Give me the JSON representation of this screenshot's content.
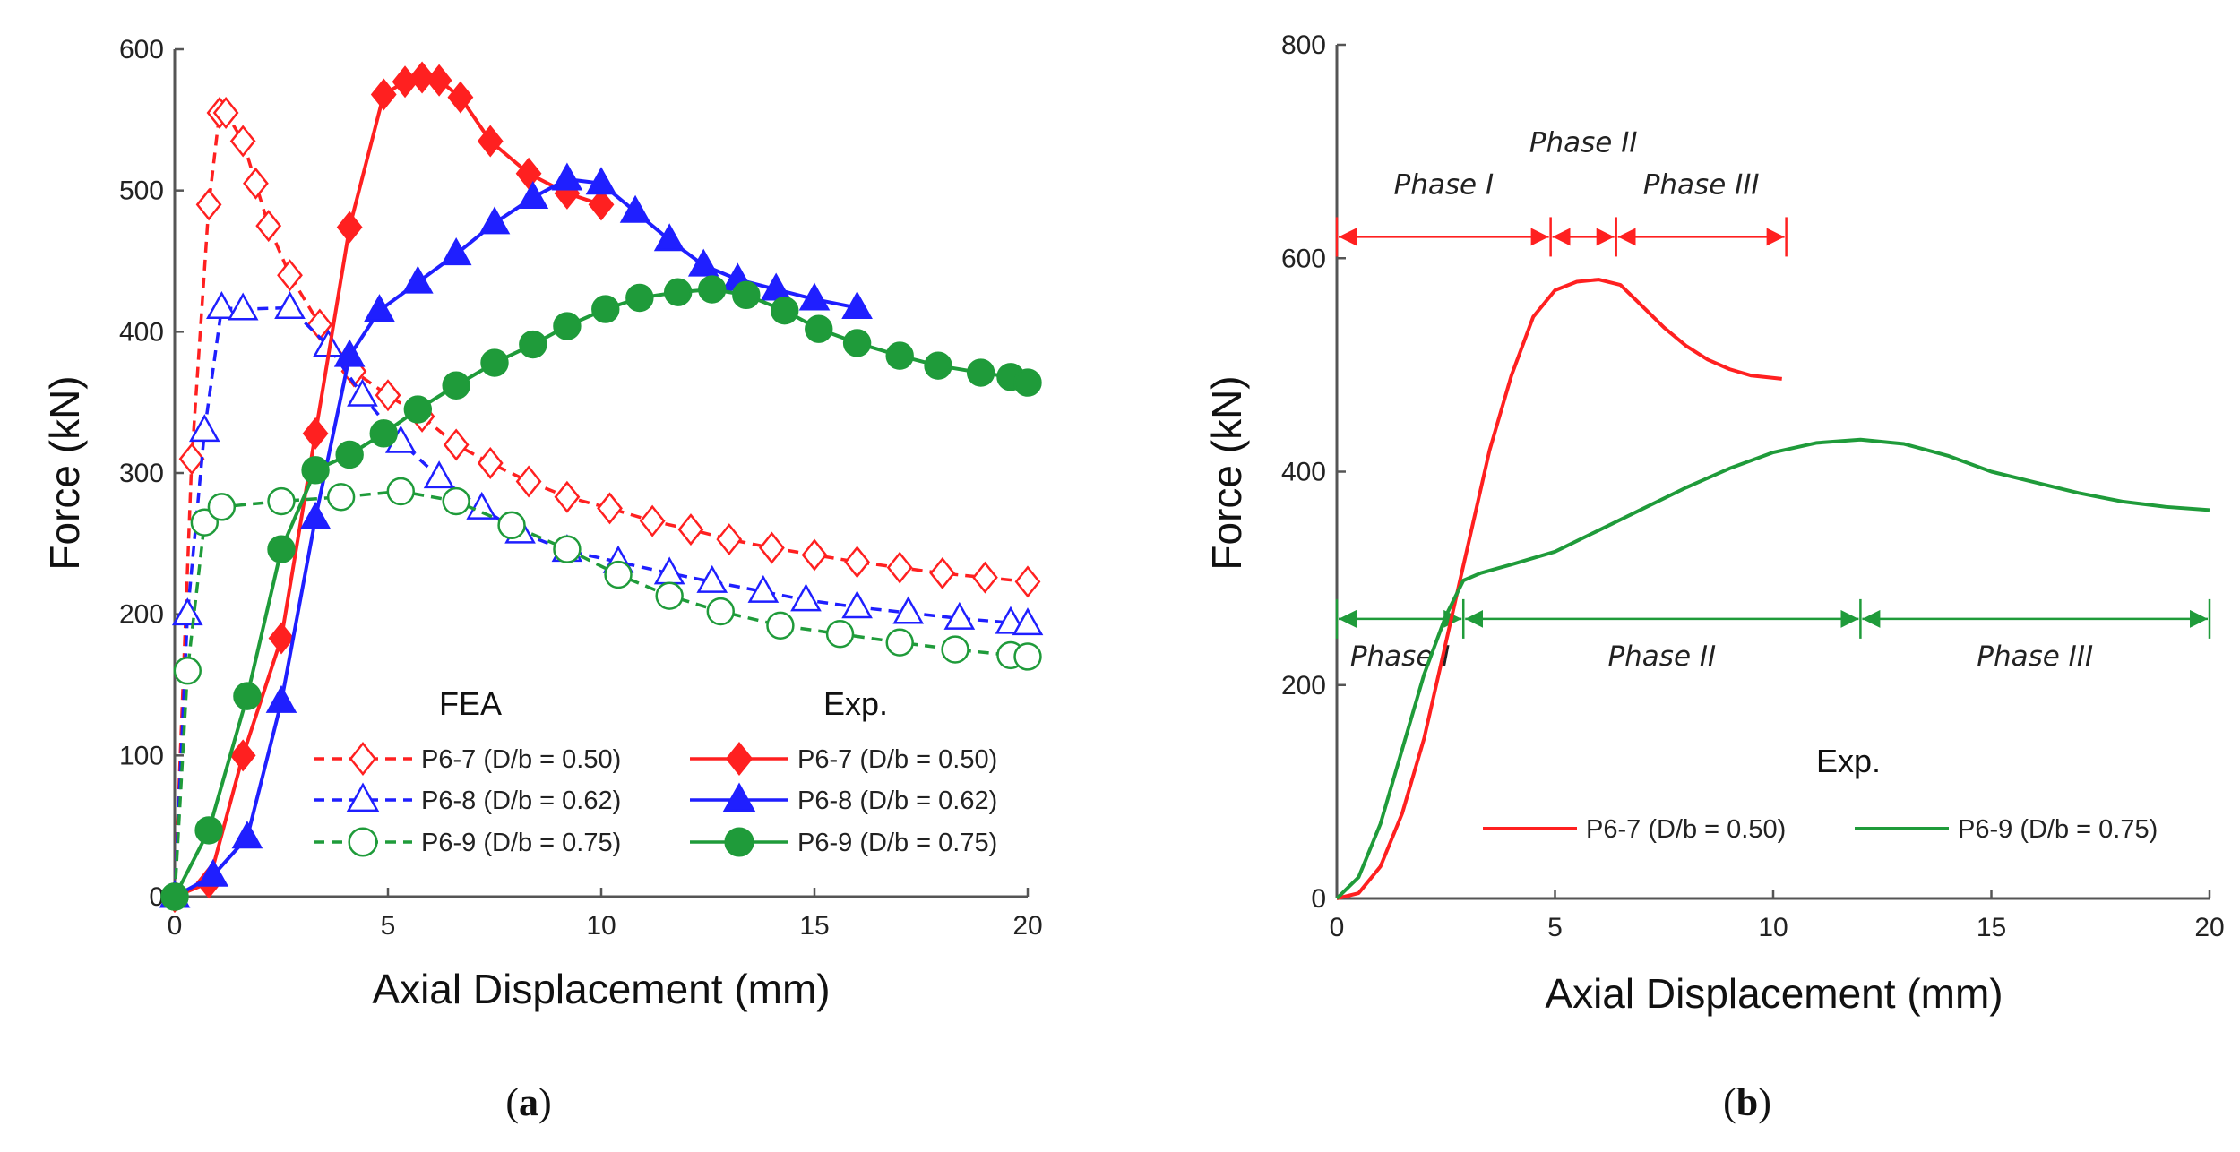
{
  "colors": {
    "red": "#ff2020",
    "blue": "#1f1fff",
    "green": "#1f9b3a",
    "axis": "#555555"
  },
  "panels": [
    {
      "label": "a"
    },
    {
      "label": "b"
    }
  ],
  "chart_data": [
    {
      "type": "line",
      "title": "",
      "xlabel": "Axial Displacement (mm)",
      "ylabel": "Force (kN)",
      "xlim": [
        0,
        20
      ],
      "ylim": [
        0,
        600
      ],
      "xticks": [
        0,
        5,
        10,
        15,
        20
      ],
      "yticks": [
        0,
        100,
        200,
        300,
        400,
        500,
        600
      ],
      "legend_placement": "bottom-right",
      "legend_headers": {
        "fea": "FEA",
        "exp": "Exp."
      },
      "series": [
        {
          "name": "P6-7 (D/b = 0.50)",
          "group": "FEA",
          "color": "red",
          "dash": true,
          "marker": "diamond-open",
          "x": [
            0,
            0.4,
            0.8,
            1.05,
            1.2,
            1.6,
            1.9,
            2.2,
            2.7,
            3.4,
            4.2,
            5,
            5.8,
            6.6,
            7.4,
            8.3,
            9.2,
            10.2,
            11.2,
            12.1,
            13,
            14,
            15,
            16,
            17,
            18,
            19,
            20
          ],
          "y": [
            0,
            310,
            490,
            555,
            555,
            535,
            505,
            475,
            440,
            405,
            372,
            355,
            340,
            320,
            307,
            294,
            283,
            275,
            266,
            260,
            253,
            247,
            242,
            237,
            233,
            229,
            226,
            223
          ]
        },
        {
          "name": "P6-8 (D/b = 0.62)",
          "group": "FEA",
          "color": "blue",
          "dash": true,
          "marker": "triangle-open",
          "x": [
            0,
            0.3,
            0.7,
            1.1,
            1.6,
            2.7,
            3.6,
            4.4,
            5.3,
            6.2,
            7.2,
            8.1,
            9.2,
            10.4,
            11.6,
            12.6,
            13.8,
            14.8,
            16,
            17.2,
            18.4,
            19.6,
            20
          ],
          "y": [
            0,
            200,
            330,
            417,
            416,
            417,
            390,
            355,
            322,
            297,
            275,
            258,
            245,
            237,
            229,
            223,
            216,
            210,
            205,
            201,
            197,
            194,
            193
          ]
        },
        {
          "name": "P6-9 (D/b = 0.75)",
          "group": "FEA",
          "color": "green",
          "dash": true,
          "marker": "circle-open",
          "x": [
            0,
            0.3,
            0.7,
            1.1,
            2.5,
            3.9,
            5.3,
            6.6,
            7.9,
            9.2,
            10.4,
            11.6,
            12.8,
            14.2,
            15.6,
            17,
            18.3,
            19.6,
            20
          ],
          "y": [
            0,
            160,
            265,
            276,
            280,
            283,
            287,
            280,
            263,
            246,
            228,
            213,
            202,
            192,
            186,
            180,
            175,
            171,
            170
          ]
        },
        {
          "name": "P6-7 (D/b = 0.50)",
          "group": "Exp.",
          "color": "red",
          "dash": false,
          "marker": "diamond-filled",
          "x": [
            0,
            0.8,
            1.6,
            2.5,
            3.3,
            4.1,
            4.9,
            5.4,
            5.8,
            6.2,
            6.7,
            7.4,
            8.3,
            9.2,
            10.0
          ],
          "y": [
            0,
            10,
            100,
            183,
            328,
            474,
            568,
            577,
            580,
            578,
            566,
            535,
            512,
            498,
            490
          ]
        },
        {
          "name": "P6-8 (D/b = 0.62)",
          "group": "Exp.",
          "color": "blue",
          "dash": false,
          "marker": "triangle-filled",
          "x": [
            0,
            0.9,
            1.7,
            2.5,
            3.3,
            4.1,
            4.8,
            5.7,
            6.6,
            7.5,
            8.4,
            9.2,
            10,
            10.8,
            11.6,
            12.4,
            13.2,
            14.1,
            15,
            16
          ],
          "y": [
            0,
            15,
            42,
            138,
            268,
            383,
            415,
            435,
            455,
            477,
            495,
            508,
            505,
            485,
            465,
            447,
            437,
            430,
            423,
            417
          ]
        },
        {
          "name": "P6-9 (D/b = 0.75)",
          "group": "Exp.",
          "color": "green",
          "dash": false,
          "marker": "circle-filled",
          "x": [
            0,
            0.8,
            1.7,
            2.5,
            3.3,
            4.1,
            4.9,
            5.7,
            6.6,
            7.5,
            8.4,
            9.2,
            10.1,
            10.9,
            11.8,
            12.6,
            13.4,
            14.3,
            15.1,
            16,
            17,
            17.9,
            18.9,
            19.6,
            20
          ],
          "y": [
            0,
            47,
            142,
            246,
            302,
            313,
            328,
            345,
            362,
            378,
            391,
            404,
            416,
            424,
            428,
            430,
            426,
            415,
            402,
            392,
            383,
            376,
            371,
            368,
            364
          ]
        }
      ]
    },
    {
      "type": "line",
      "title": "",
      "xlabel": "Axial Displacement (mm)",
      "ylabel": "Force (kN)",
      "xlim": [
        0,
        20
      ],
      "ylim": [
        0,
        800
      ],
      "xticks": [
        0,
        5,
        10,
        15,
        20
      ],
      "yticks": [
        0,
        200,
        400,
        600,
        800
      ],
      "legend_placement": "bottom-right",
      "legend_header": "Exp.",
      "series": [
        {
          "name": "P6-7 (D/b = 0.50)",
          "color": "red",
          "x": [
            0,
            0.5,
            1,
            1.5,
            2,
            2.5,
            3,
            3.5,
            4,
            4.5,
            5,
            5.5,
            6,
            6.5,
            7,
            7.5,
            8,
            8.5,
            9,
            9.5,
            10.2
          ],
          "y": [
            0,
            5,
            30,
            80,
            150,
            240,
            330,
            420,
            490,
            545,
            570,
            578,
            580,
            575,
            555,
            535,
            518,
            505,
            496,
            490,
            487
          ]
        },
        {
          "name": "P6-9 (D/b = 0.75)",
          "color": "green",
          "x": [
            0,
            0.5,
            1,
            1.5,
            2,
            2.5,
            2.9,
            3.3,
            4,
            5,
            6,
            7,
            8,
            9,
            10,
            11,
            12,
            13,
            14,
            15,
            16,
            17,
            18,
            19,
            20
          ],
          "y": [
            0,
            20,
            70,
            140,
            210,
            265,
            298,
            305,
            313,
            325,
            345,
            365,
            385,
            403,
            418,
            427,
            430,
            426,
            415,
            400,
            390,
            380,
            372,
            367,
            364
          ]
        }
      ],
      "annotations": {
        "red_phases": [
          {
            "label": "Phase I",
            "from": 0,
            "to": 4.9
          },
          {
            "label": "Phase II",
            "from": 4.9,
            "to": 6.4
          },
          {
            "label": "Phase III",
            "from": 6.4,
            "to": 10.3
          }
        ],
        "red_phase_level": 620,
        "green_phases": [
          {
            "label": "Phase I",
            "from": 0,
            "to": 2.9
          },
          {
            "label": "Phase II",
            "from": 2.9,
            "to": 12
          },
          {
            "label": "Phase III",
            "from": 12,
            "to": 20
          }
        ],
        "green_phase_level": 262
      }
    }
  ]
}
